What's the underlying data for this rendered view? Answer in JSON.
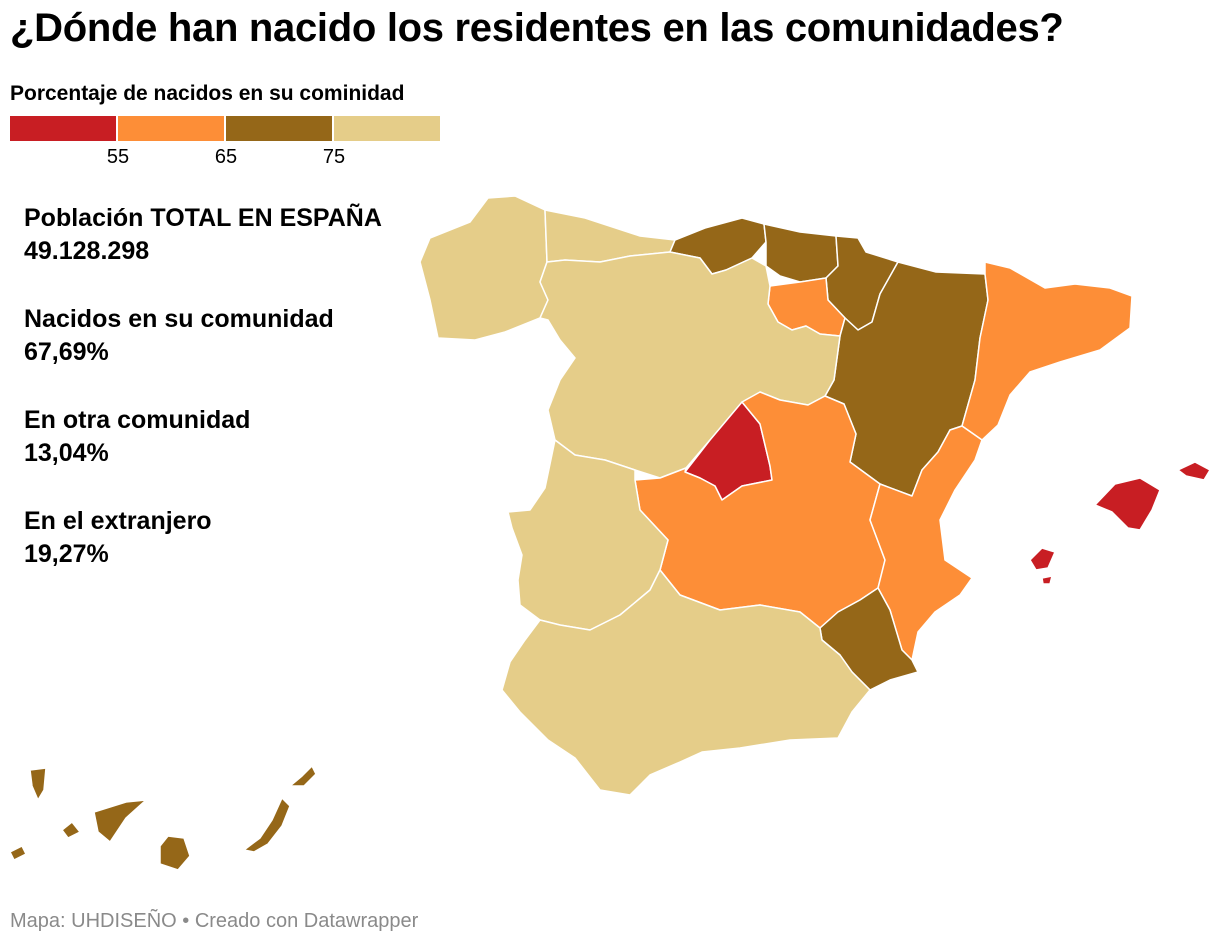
{
  "title": "¿Dónde han nacido los residentes en las comunidades?",
  "legend": {
    "title": "Porcentaje de nacidos en su cominidad",
    "ticks": [
      "55",
      "65",
      "75"
    ],
    "colors": [
      "#c81e23",
      "#fd8e37",
      "#956718",
      "#e5cd89"
    ]
  },
  "stats": [
    {
      "label": "Población TOTAL EN ESPAÑA",
      "value": "49.128.298"
    },
    {
      "label": "Nacidos en su comunidad",
      "value": "67,69%"
    },
    {
      "label": "En otra comunidad",
      "value": "13,04%"
    },
    {
      "label": "En el extranjero",
      "value": "19,27%"
    }
  ],
  "regions": [
    {
      "name": "Galicia",
      "color": "#e5cd89"
    },
    {
      "name": "Asturias",
      "color": "#e5cd89"
    },
    {
      "name": "Cantabria",
      "color": "#956718"
    },
    {
      "name": "País Vasco",
      "color": "#956718"
    },
    {
      "name": "Navarra",
      "color": "#956718"
    },
    {
      "name": "La Rioja",
      "color": "#fd8e37"
    },
    {
      "name": "Aragón",
      "color": "#956718"
    },
    {
      "name": "Cataluña",
      "color": "#fd8e37"
    },
    {
      "name": "Castilla y León",
      "color": "#e5cd89"
    },
    {
      "name": "Madrid",
      "color": "#c81e23"
    },
    {
      "name": "Castilla-La Mancha",
      "color": "#fd8e37"
    },
    {
      "name": "Extremadura",
      "color": "#e5cd89"
    },
    {
      "name": "Comunidad Valenciana",
      "color": "#fd8e37"
    },
    {
      "name": "Murcia",
      "color": "#956718"
    },
    {
      "name": "Andalucía",
      "color": "#e5cd89"
    },
    {
      "name": "Baleares",
      "color": "#c81e23"
    },
    {
      "name": "Canarias",
      "color": "#956718"
    }
  ],
  "credit": "Mapa: UHDISEÑO • Creado con Datawrapper"
}
